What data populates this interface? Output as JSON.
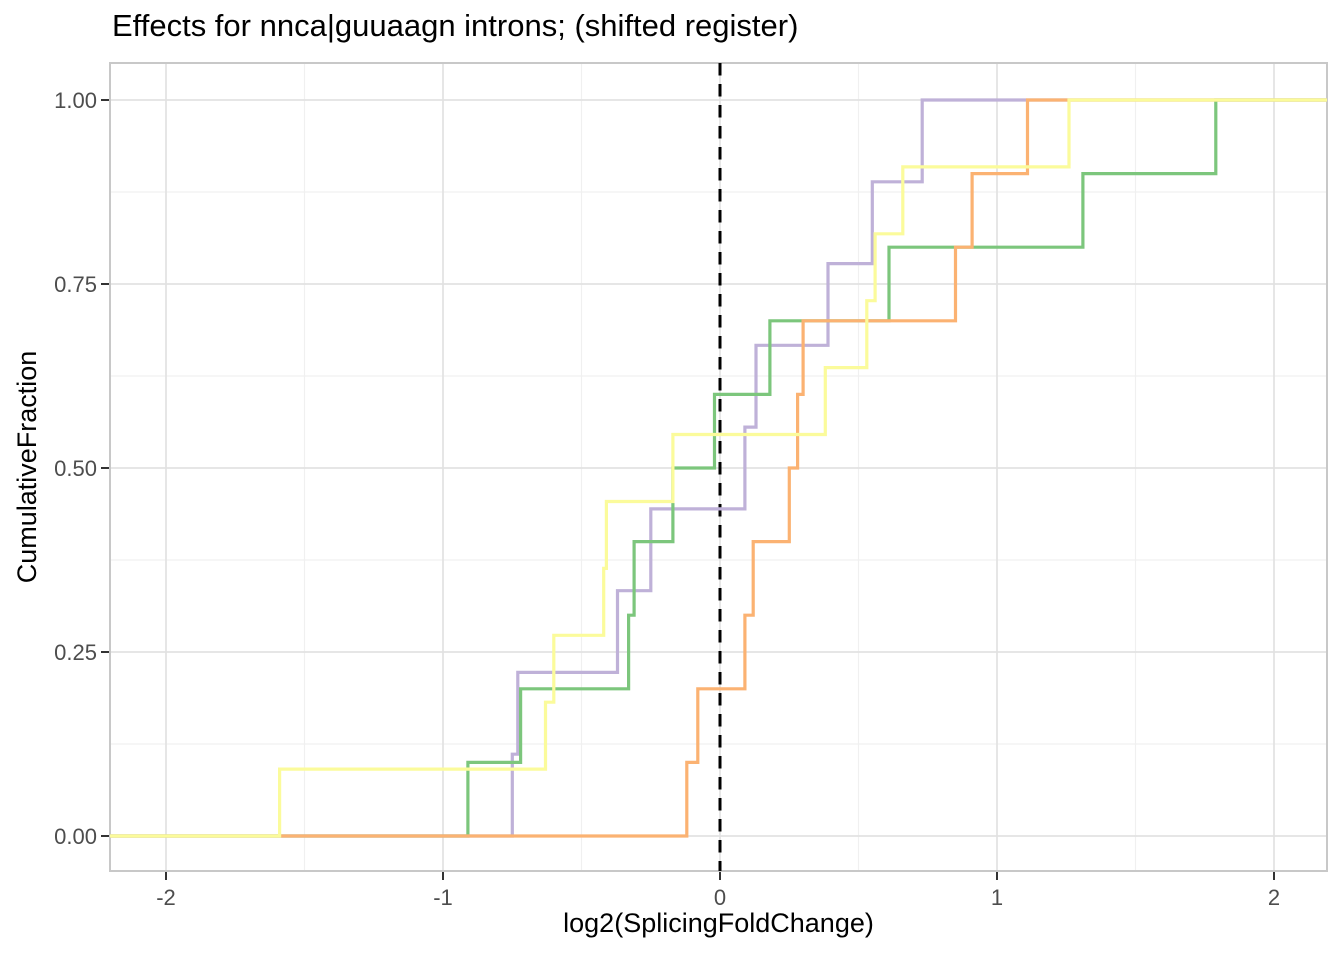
{
  "chart_data": {
    "type": "line",
    "subtype": "ecdf-step",
    "title": "Effects for nnca|guuaagn introns; (shifted register)",
    "xlabel": "log2(SplicingFoldChange)",
    "ylabel": "CumulativeFraction",
    "xlim": [
      -2.2,
      2.19
    ],
    "ylim": [
      -0.048,
      1.05
    ],
    "grid": "major+minor",
    "legend_position": "none",
    "x_ticks": [
      -2,
      -1,
      0,
      1,
      2
    ],
    "x_tick_labels": [
      "-2",
      "-1",
      "0",
      "1",
      "2"
    ],
    "y_ticks": [
      0,
      0.25,
      0.5,
      0.75,
      1.0
    ],
    "y_tick_labels": [
      "0.00",
      "0.25",
      "0.50",
      "0.75",
      "1.00"
    ],
    "x_minor_ticks": [
      -1.5,
      -0.5,
      0.5,
      1.5
    ],
    "y_minor_ticks": [
      0.125,
      0.375,
      0.625,
      0.875
    ],
    "reference_line_x": 0,
    "colors": {
      "reference_line": "#000000",
      "grid_major": "#e2e2e2",
      "grid_minor": "#f0f0f0",
      "panel_border": "#c8c8c8",
      "tick": "#333333",
      "tick_label": "#4d4d4d",
      "title_text": "#000000"
    },
    "series": [
      {
        "name": "purple",
        "color": "#bfb1d8",
        "n": 9,
        "values": [
          -0.75,
          -0.73,
          -0.37,
          -0.25,
          0.09,
          0.13,
          0.39,
          0.55,
          0.73
        ]
      },
      {
        "name": "green",
        "color": "#7cc67c",
        "n": 10,
        "values": [
          -0.91,
          -0.72,
          -0.33,
          -0.31,
          -0.17,
          -0.02,
          0.18,
          0.61,
          1.31,
          1.79
        ]
      },
      {
        "name": "orange",
        "color": "#fbb272",
        "n": 10,
        "values": [
          -0.12,
          -0.08,
          0.09,
          0.12,
          0.25,
          0.28,
          0.3,
          0.85,
          0.91,
          1.11
        ]
      },
      {
        "name": "yellow",
        "color": "#fbfb9b",
        "n": 11,
        "values": [
          -1.59,
          -0.63,
          -0.6,
          -0.42,
          -0.41,
          -0.17,
          0.38,
          0.53,
          0.56,
          0.66,
          1.26
        ]
      }
    ]
  }
}
